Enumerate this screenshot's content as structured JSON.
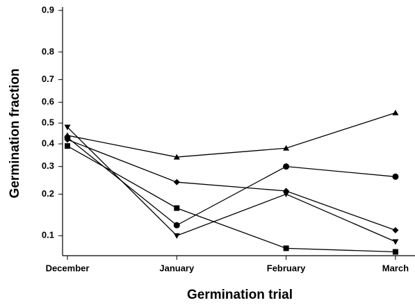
{
  "chart_data": {
    "type": "line",
    "x_label": "Germination trial",
    "y_label": "Germination fraction",
    "categories": [
      "December",
      "January",
      "February",
      "March"
    ],
    "yscale": "logit",
    "ylim": [
      0.07,
      0.9
    ],
    "yticks": [
      0.1,
      0.2,
      0.3,
      0.4,
      0.5,
      0.6,
      0.7,
      0.8,
      0.9
    ],
    "series": [
      {
        "marker": "triangle-up",
        "color": "#000000",
        "values": [
          0.44,
          0.34,
          0.38,
          0.55
        ]
      },
      {
        "marker": "circle",
        "color": "#000000",
        "values": [
          0.43,
          0.12,
          0.3,
          0.26
        ]
      },
      {
        "marker": "diamond",
        "color": "#000000",
        "values": [
          0.42,
          0.24,
          0.21,
          0.11
        ]
      },
      {
        "marker": "triangle-down",
        "color": "#000000",
        "values": [
          0.48,
          0.1,
          0.2,
          0.09
        ]
      },
      {
        "marker": "square",
        "color": "#000000",
        "values": [
          0.39,
          0.16,
          0.08,
          0.075
        ]
      }
    ]
  }
}
